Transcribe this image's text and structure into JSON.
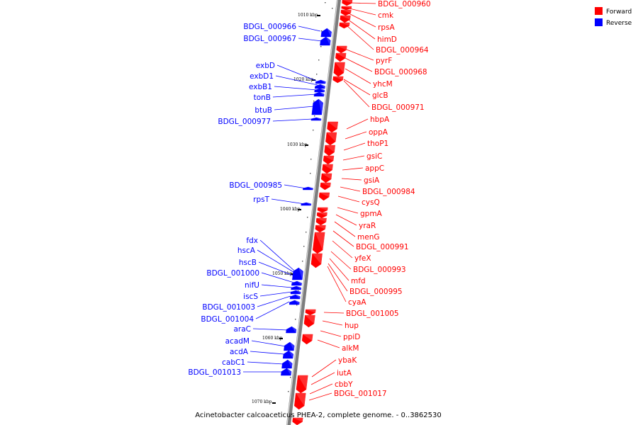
{
  "caption": "Acinetobacter calcoaceticus PHEA-2, complete genome. - 0..3862530",
  "colors": {
    "forward": "#ff0000",
    "reverse": "#0000ff",
    "backbone": "#888888"
  },
  "legend": [
    {
      "label": "Forward",
      "strand": "forward"
    },
    {
      "label": "Reverse",
      "strand": "reverse"
    }
  ],
  "ticks": [
    "1010 kbp",
    "1020 kbp",
    "1030 kbp",
    "1040 kbp",
    "1050 kbp",
    "1060 kbp",
    "1070 kbp"
  ],
  "forward_genes": [
    "BDGL_000960",
    "cmk",
    "rpsA",
    "himD",
    "BDGL_000964",
    "pyrF",
    "BDGL_000968",
    "yhcM",
    "glcB",
    "BDGL_000971",
    "hbpA",
    "oppA",
    "thoP1",
    "gsiC",
    "appC",
    "gsiA",
    "BDGL_000984",
    "cysQ",
    "gpmA",
    "yraR",
    "menG",
    "BDGL_000991",
    "yfeX",
    "BDGL_000993",
    "mfd",
    "BDGL_000995",
    "cyaA",
    "BDGL_001005",
    "hup",
    "ppiD",
    "alkM",
    "ybaK",
    "iutA",
    "cbbY",
    "BDGL_001017"
  ],
  "reverse_genes": [
    "BDGL_000966",
    "BDGL_000967",
    "exbD",
    "exbD1",
    "exbB1",
    "tonB",
    "btuB",
    "BDGL_000977",
    "BDGL_000985",
    "rpsT",
    "fdx",
    "hscA",
    "hscB",
    "BDGL_001000",
    "nifU",
    "iscS",
    "BDGL_001003",
    "BDGL_001004",
    "araC",
    "acadM",
    "acdA",
    "cabC1",
    "BDGL_001013"
  ]
}
